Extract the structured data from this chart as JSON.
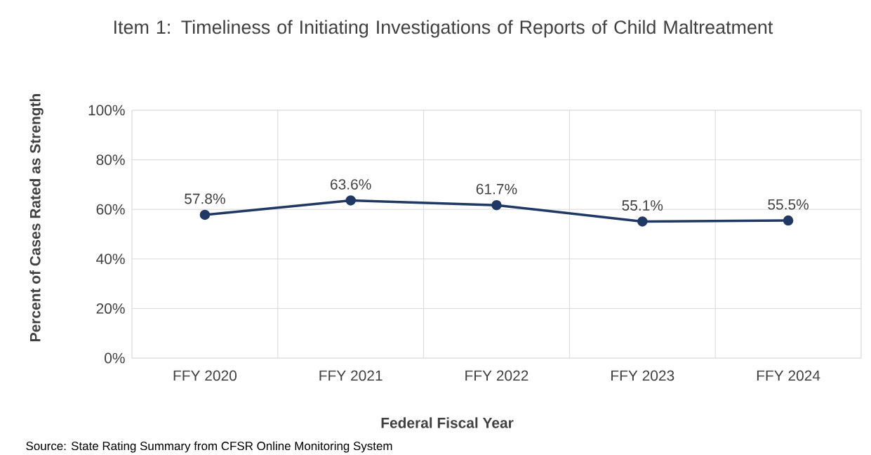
{
  "chart_data": {
    "type": "line",
    "title": "Item 1: Timeliness of Initiating Investigations of Reports of Child Maltreatment",
    "xlabel": "Federal Fiscal Year",
    "ylabel": "Percent of Cases Rated as Strength",
    "categories": [
      "FFY 2020",
      "FFY 2021",
      "FFY 2022",
      "FFY 2023",
      "FFY 2024"
    ],
    "values": [
      57.8,
      63.6,
      61.7,
      55.1,
      55.5
    ],
    "value_labels": [
      "57.8%",
      "63.6%",
      "61.7%",
      "55.1%",
      "55.5%"
    ],
    "color": "#203864",
    "marker": "circle",
    "line_style": "solid",
    "grid": true,
    "ylim": [
      0,
      100
    ],
    "yticks": [
      {
        "value": 0,
        "label": "0%"
      },
      {
        "value": 20,
        "label": "20%"
      },
      {
        "value": 40,
        "label": "40%"
      },
      {
        "value": 60,
        "label": "60%"
      },
      {
        "value": 80,
        "label": "80%"
      },
      {
        "value": 100,
        "label": "100%"
      }
    ],
    "annotations": [
      "Source: State Rating Summary from CFSR Online Monitoring System"
    ]
  }
}
